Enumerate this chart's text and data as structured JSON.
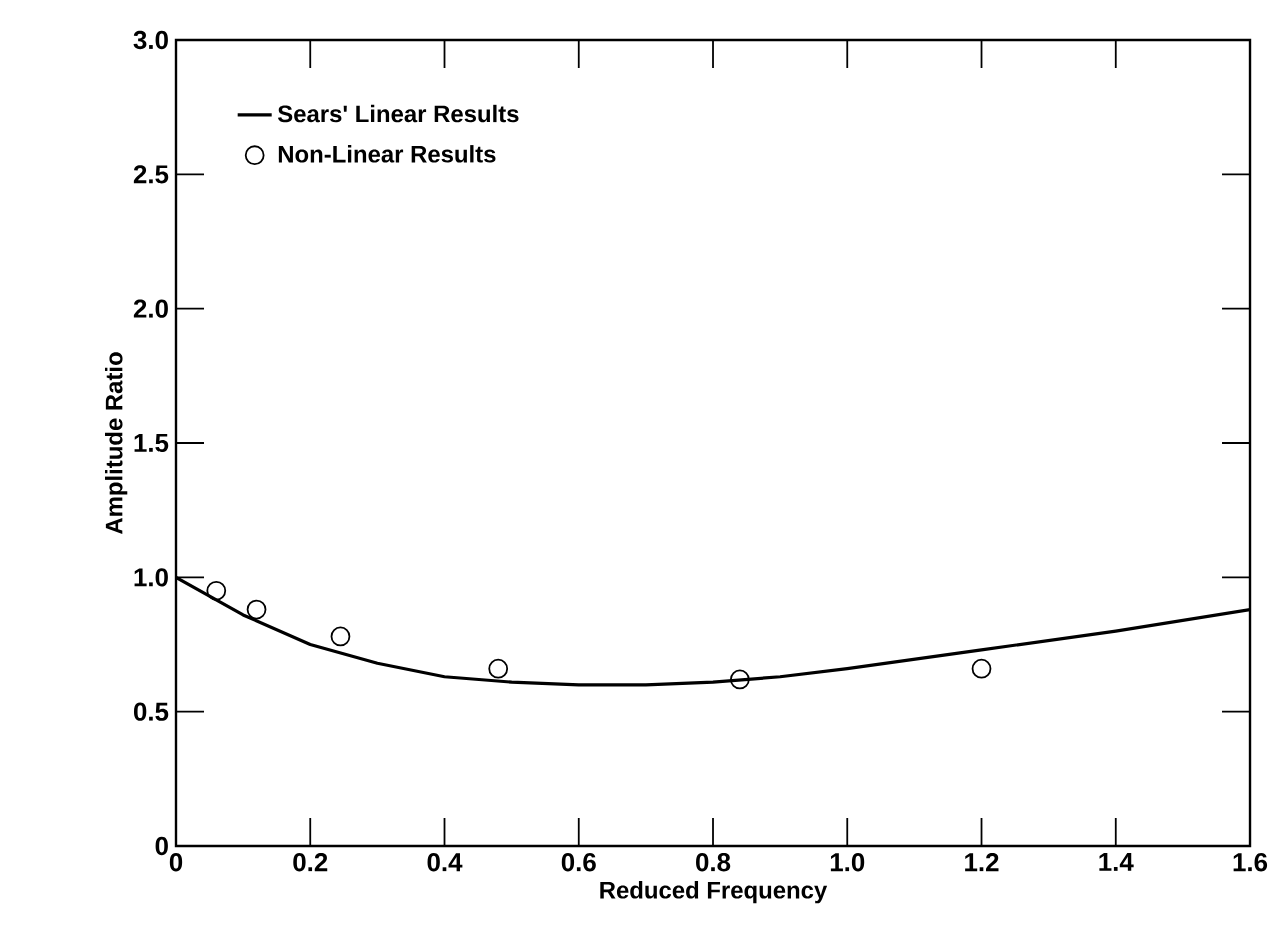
{
  "chart_data": {
    "type": "line",
    "xlabel": "Reduced Frequency",
    "ylabel": "Amplitude Ratio",
    "xlim": [
      0,
      1.6
    ],
    "ylim": [
      0,
      3.0
    ],
    "xticks": [
      0,
      0.2,
      0.4,
      0.6,
      0.8,
      {
        "value": 1.0,
        "label": "1.0"
      },
      1.2,
      1.4,
      1.6
    ],
    "yticks": [
      0,
      0.5,
      {
        "value": 1.0,
        "label": "1.0"
      },
      1.5,
      {
        "value": 2.0,
        "label": "2.0"
      },
      2.5,
      {
        "value": 3.0,
        "label": "3.0"
      }
    ],
    "grid": false,
    "legend": "top left",
    "series": [
      {
        "name": "Sears' Linear Results",
        "color": "#000000",
        "marker": "none",
        "line_style": "solid",
        "x": [
          0,
          0.05,
          0.1,
          0.2,
          0.3,
          0.4,
          0.5,
          0.6,
          0.7,
          0.8,
          0.9,
          1.0,
          1.2,
          1.4,
          1.6
        ],
        "values": [
          1.0,
          0.93,
          0.86,
          0.75,
          0.68,
          0.63,
          0.61,
          0.6,
          0.6,
          0.61,
          0.63,
          0.66,
          0.73,
          0.8,
          0.88
        ]
      },
      {
        "name": "Non-Linear Results",
        "type": "scatter",
        "color": "#000000",
        "marker": "circle",
        "x": [
          0.06,
          0.12,
          0.245,
          0.48,
          0.84,
          1.2
        ],
        "values": [
          0.95,
          0.88,
          0.78,
          0.66,
          0.62,
          0.66
        ]
      }
    ]
  }
}
